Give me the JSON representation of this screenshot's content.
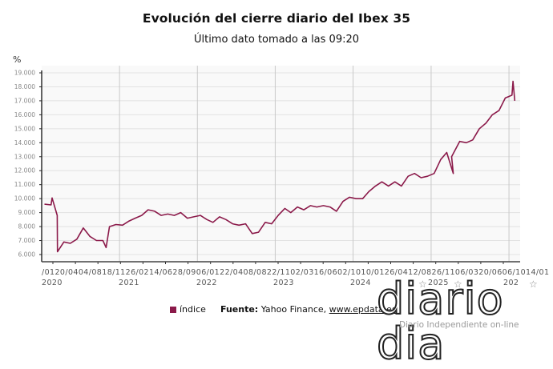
{
  "header": {
    "title": "Evolución del cierre diario del Ibex 35",
    "subtitle": "Último dato tomado a las 09:20",
    "unit": "%"
  },
  "legend": {
    "series_name": "índice",
    "color": "#8b1a4a"
  },
  "source": {
    "label": "Fuente:",
    "text": "Yahoo Finance,",
    "link": "www.epdata.es"
  },
  "logo": {
    "wordmark": "diario dia",
    "tagline": "Diario Independiente on-line"
  },
  "chart_data": {
    "type": "line",
    "title": "Evolución del cierre diario del Ibex 35",
    "subtitle": "Último dato tomado a las 09:20",
    "xlabel": "",
    "ylabel": "%",
    "ylim": [
      5500,
      19000
    ],
    "yticks": [
      6000,
      7000,
      8000,
      9000,
      10000,
      11000,
      12000,
      13000,
      14000,
      15000,
      16000,
      17000,
      18000,
      19000
    ],
    "ytick_labels": [
      "6.000",
      "7.000",
      "8.000",
      "9.000",
      "10.000",
      "11.000",
      "12.000",
      "13.000",
      "14.000",
      "15.000",
      "16.000",
      "17.000",
      "18.000",
      "19.000"
    ],
    "xtick_text": "/0120/0404/0818/1126/0214/0628/0906/0122/0408/0822/1102/0316/0602/1010/0126/0412/0826/1106/0320/0606/1014/01",
    "year_labels": [
      "2020",
      "2021",
      "2022",
      "2023",
      "2024",
      "2025",
      "202"
    ],
    "grid": true,
    "legend_position": "bottom",
    "series": [
      {
        "name": "índice",
        "color": "#8b1a4a",
        "x": [
          "2020-01",
          "2020-02",
          "2020-02-20",
          "2020-03",
          "2020-03-16",
          "2020-04",
          "2020-05",
          "2020-06",
          "2020-07",
          "2020-08",
          "2020-09",
          "2020-10",
          "2020-10-30",
          "2020-11",
          "2020-12",
          "2021-01",
          "2021-02",
          "2021-03",
          "2021-04",
          "2021-05",
          "2021-06",
          "2021-07",
          "2021-08",
          "2021-09",
          "2021-10",
          "2021-11",
          "2021-12",
          "2022-01",
          "2022-02",
          "2022-03",
          "2022-04",
          "2022-05",
          "2022-06",
          "2022-07",
          "2022-08",
          "2022-09",
          "2022-10",
          "2022-11",
          "2022-12",
          "2023-01",
          "2023-02",
          "2023-03",
          "2023-04",
          "2023-05",
          "2023-06",
          "2023-07",
          "2023-08",
          "2023-09",
          "2023-10",
          "2023-11",
          "2023-12",
          "2024-01",
          "2024-02",
          "2024-03",
          "2024-04",
          "2024-05",
          "2024-06",
          "2024-07",
          "2024-08",
          "2024-09",
          "2024-10",
          "2024-11",
          "2024-12",
          "2025-01",
          "2025-02",
          "2025-03",
          "2025-04",
          "2025-04-07",
          "2025-05",
          "2025-06",
          "2025-07",
          "2025-08",
          "2025-09",
          "2025-10",
          "2025-11",
          "2025-12",
          "2026-01",
          "2026-01-20",
          "2026-01-28"
        ],
        "values": [
          9600,
          9550,
          10050,
          8800,
          6200,
          6900,
          6800,
          7100,
          7900,
          7300,
          7000,
          7000,
          6500,
          8000,
          8150,
          8100,
          8400,
          8600,
          8800,
          9200,
          9100,
          8800,
          8900,
          8800,
          9000,
          8600,
          8700,
          8800,
          8500,
          8300,
          8700,
          8500,
          8200,
          8100,
          8200,
          7500,
          7600,
          8300,
          8200,
          8800,
          9300,
          9000,
          9400,
          9200,
          9500,
          9400,
          9500,
          9400,
          9100,
          9800,
          10100,
          10000,
          10000,
          10500,
          10900,
          11200,
          10900,
          11200,
          10900,
          11600,
          11800,
          11500,
          11600,
          11800,
          12800,
          13300,
          11800,
          13000,
          14100,
          14000,
          14200,
          15000,
          15400,
          16000,
          16300,
          17200,
          17400,
          18400,
          17000
        ]
      }
    ]
  }
}
